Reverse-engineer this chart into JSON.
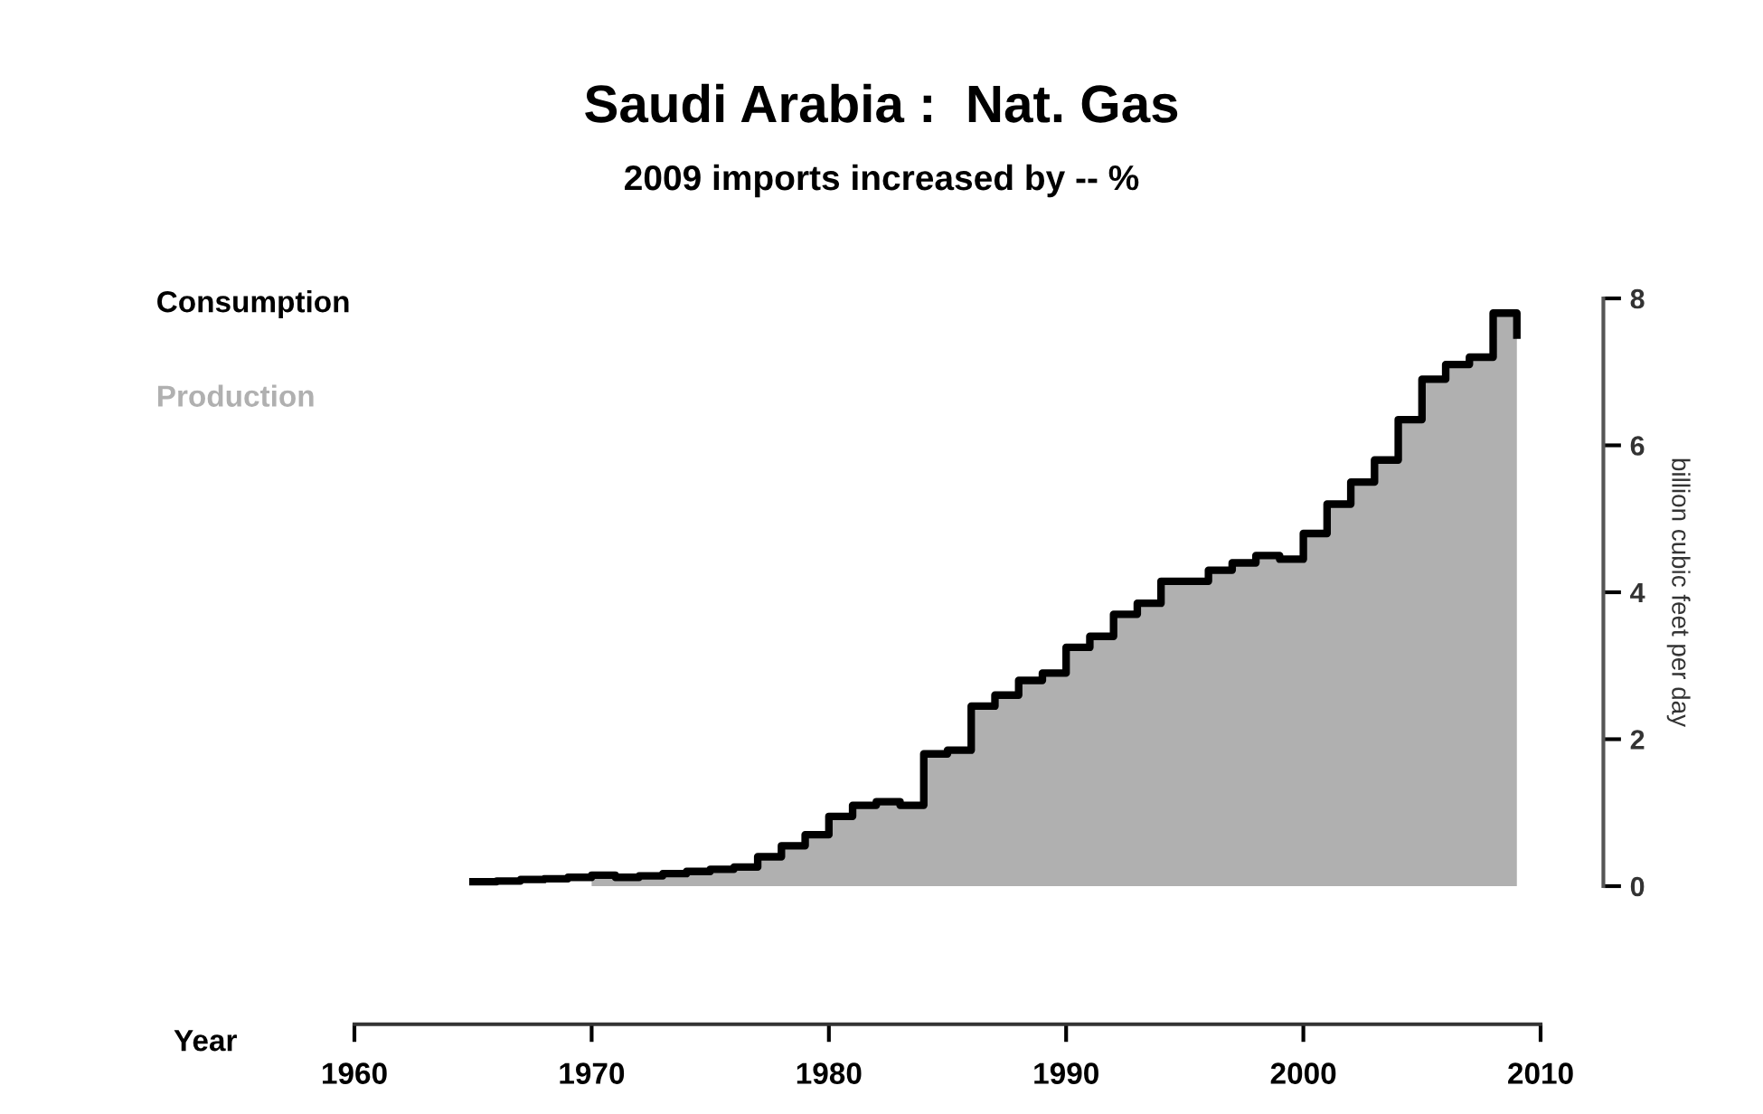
{
  "chart_data": {
    "type": "step",
    "title": "Saudi Arabia :  Nat. Gas",
    "subtitle": "2009 imports increased by -- %",
    "xlabel": "Year",
    "ylabel": "billion cubic feet per day",
    "x": [
      1965,
      1966,
      1967,
      1968,
      1969,
      1970,
      1971,
      1972,
      1973,
      1974,
      1975,
      1976,
      1977,
      1978,
      1979,
      1980,
      1981,
      1982,
      1983,
      1984,
      1985,
      1986,
      1987,
      1988,
      1989,
      1990,
      1991,
      1992,
      1993,
      1994,
      1995,
      1996,
      1997,
      1998,
      1999,
      2000,
      2001,
      2002,
      2003,
      2004,
      2005,
      2006,
      2007,
      2008,
      2009
    ],
    "series": [
      {
        "name": "Consumption",
        "color": "#000000",
        "values": [
          0.06,
          0.07,
          0.09,
          0.1,
          0.12,
          0.15,
          0.12,
          0.14,
          0.17,
          0.2,
          0.23,
          0.26,
          0.4,
          0.55,
          0.7,
          0.95,
          1.1,
          1.15,
          1.1,
          1.8,
          1.85,
          2.45,
          2.6,
          2.8,
          2.9,
          3.25,
          3.4,
          3.7,
          3.85,
          4.15,
          4.15,
          4.3,
          4.4,
          4.5,
          4.45,
          4.8,
          5.2,
          5.5,
          5.8,
          6.35,
          6.9,
          7.1,
          7.2,
          7.8,
          7.5
        ]
      },
      {
        "name": "Production",
        "type": "area",
        "color": "#b0b0b0",
        "values": [
          null,
          null,
          null,
          null,
          null,
          0.15,
          0.12,
          0.14,
          0.17,
          0.2,
          0.23,
          0.26,
          0.4,
          0.55,
          0.7,
          0.95,
          1.1,
          1.15,
          1.1,
          1.8,
          1.85,
          2.45,
          2.6,
          2.8,
          2.9,
          3.25,
          3.4,
          3.7,
          3.85,
          4.15,
          4.15,
          4.3,
          4.4,
          4.5,
          4.45,
          4.8,
          5.2,
          5.5,
          5.8,
          6.35,
          6.9,
          7.1,
          7.2,
          7.8,
          7.5
        ]
      }
    ],
    "xlim": [
      1960,
      2010
    ],
    "xticks": [
      1960,
      1970,
      1980,
      1990,
      2000,
      2010
    ],
    "ylim": [
      0,
      8
    ],
    "yticks": [
      0,
      2,
      4,
      6,
      8
    ],
    "grid": false,
    "legend": "top left"
  }
}
